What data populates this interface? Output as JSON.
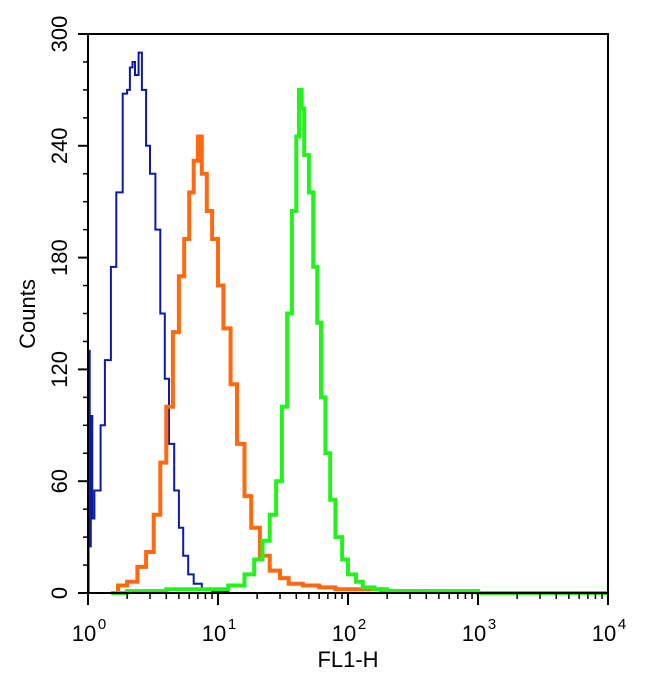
{
  "chart_data": {
    "type": "histogram",
    "title": "",
    "xlabel": "FL1-H",
    "ylabel": "Counts",
    "x_scale": "log",
    "xlim": [
      1,
      10000
    ],
    "ylim": [
      0,
      300
    ],
    "y_ticks": [
      0,
      60,
      120,
      180,
      240,
      300
    ],
    "y_tick_labels": [
      "0",
      "60",
      "120",
      "180",
      "240",
      "300"
    ],
    "x_ticks": [
      {
        "base": "10",
        "exp": "0"
      },
      {
        "base": "10",
        "exp": "1"
      },
      {
        "base": "10",
        "exp": "2"
      },
      {
        "base": "10",
        "exp": "3"
      },
      {
        "base": "10",
        "exp": "4"
      }
    ],
    "grid": false,
    "legend": "none",
    "series": [
      {
        "color": "#0b1aa8",
        "points": [
          [
            1.0,
            0
          ],
          [
            1.01,
            130
          ],
          [
            1.03,
            25
          ],
          [
            1.05,
            95
          ],
          [
            1.08,
            40
          ],
          [
            1.12,
            55
          ],
          [
            1.18,
            55
          ],
          [
            1.25,
            90
          ],
          [
            1.35,
            125
          ],
          [
            1.5,
            175
          ],
          [
            1.65,
            215
          ],
          [
            1.85,
            268
          ],
          [
            2.0,
            270
          ],
          [
            2.1,
            282
          ],
          [
            2.2,
            285
          ],
          [
            2.3,
            278
          ],
          [
            2.45,
            290
          ],
          [
            2.6,
            270
          ],
          [
            2.8,
            240
          ],
          [
            3.0,
            225
          ],
          [
            3.3,
            195
          ],
          [
            3.6,
            150
          ],
          [
            3.9,
            115
          ],
          [
            4.2,
            80
          ],
          [
            4.6,
            55
          ],
          [
            5.0,
            35
          ],
          [
            5.4,
            20
          ],
          [
            5.9,
            10
          ],
          [
            6.5,
            5
          ],
          [
            7.5,
            2
          ],
          [
            9.0,
            1
          ],
          [
            12,
            0
          ]
        ]
      },
      {
        "color": "#ff6a10",
        "points": [
          [
            1.5,
            0
          ],
          [
            1.7,
            4
          ],
          [
            2.0,
            6
          ],
          [
            2.4,
            14
          ],
          [
            2.8,
            22
          ],
          [
            3.2,
            42
          ],
          [
            3.6,
            70
          ],
          [
            4.0,
            100
          ],
          [
            4.5,
            140
          ],
          [
            5.0,
            170
          ],
          [
            5.5,
            190
          ],
          [
            6.0,
            215
          ],
          [
            6.5,
            232
          ],
          [
            7.0,
            245
          ],
          [
            7.5,
            225
          ],
          [
            8.2,
            205
          ],
          [
            9.0,
            190
          ],
          [
            10.0,
            165
          ],
          [
            11.0,
            142
          ],
          [
            12.5,
            112
          ],
          [
            14,
            80
          ],
          [
            16,
            52
          ],
          [
            18,
            35
          ],
          [
            21,
            20
          ],
          [
            25,
            12
          ],
          [
            30,
            8
          ],
          [
            35,
            5
          ],
          [
            45,
            4
          ],
          [
            60,
            3
          ],
          [
            80,
            2
          ],
          [
            110,
            2
          ],
          [
            180,
            1
          ],
          [
            300,
            1
          ],
          [
            400,
            0
          ]
        ]
      },
      {
        "color": "#22f31d",
        "points": [
          [
            1.5,
            0
          ],
          [
            2,
            1
          ],
          [
            4,
            2
          ],
          [
            8,
            2
          ],
          [
            12,
            4
          ],
          [
            16,
            10
          ],
          [
            19,
            18
          ],
          [
            22,
            28
          ],
          [
            25,
            42
          ],
          [
            28,
            60
          ],
          [
            31,
            100
          ],
          [
            34,
            150
          ],
          [
            37,
            205
          ],
          [
            40,
            245
          ],
          [
            42,
            270
          ],
          [
            44,
            260
          ],
          [
            46,
            235
          ],
          [
            50,
            215
          ],
          [
            54,
            175
          ],
          [
            58,
            145
          ],
          [
            62,
            105
          ],
          [
            67,
            75
          ],
          [
            73,
            50
          ],
          [
            80,
            30
          ],
          [
            90,
            18
          ],
          [
            100,
            10
          ],
          [
            115,
            6
          ],
          [
            130,
            3
          ],
          [
            160,
            2
          ],
          [
            200,
            1
          ],
          [
            300,
            1
          ],
          [
            1000,
            0
          ],
          [
            10000,
            0
          ]
        ]
      }
    ]
  }
}
